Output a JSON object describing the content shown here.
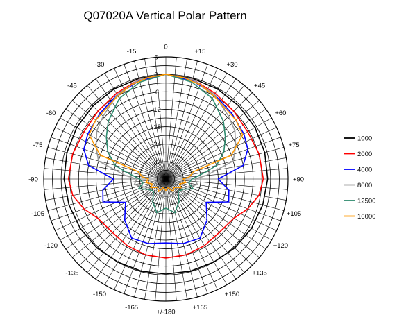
{
  "chart_data": {
    "type": "polar",
    "title": "Q07020A Vertical Polar Pattern",
    "angle_ticks": [
      {
        "deg": 0,
        "label": "0"
      },
      {
        "deg": 15,
        "label": "+15"
      },
      {
        "deg": 30,
        "label": "+30"
      },
      {
        "deg": 45,
        "label": "+45"
      },
      {
        "deg": 60,
        "label": "+60"
      },
      {
        "deg": 75,
        "label": "+75"
      },
      {
        "deg": 90,
        "label": "+90"
      },
      {
        "deg": 105,
        "label": "+105"
      },
      {
        "deg": 120,
        "label": "+120"
      },
      {
        "deg": 135,
        "label": "+135"
      },
      {
        "deg": 150,
        "label": "+150"
      },
      {
        "deg": 165,
        "label": "+165"
      },
      {
        "deg": 180,
        "label": "+/-180"
      },
      {
        "deg": -165,
        "label": "-165"
      },
      {
        "deg": -150,
        "label": "-150"
      },
      {
        "deg": -135,
        "label": "-135"
      },
      {
        "deg": -120,
        "label": "-120"
      },
      {
        "deg": -105,
        "label": "-105"
      },
      {
        "deg": -90,
        "label": "-90"
      },
      {
        "deg": -75,
        "label": "-75"
      },
      {
        "deg": -60,
        "label": "-60"
      },
      {
        "deg": -45,
        "label": "-45"
      },
      {
        "deg": -30,
        "label": "-30"
      },
      {
        "deg": -15,
        "label": "-15"
      }
    ],
    "radial_range_db": [
      -36,
      6
    ],
    "radial_ticks": [
      6,
      0,
      -6,
      -12,
      -18,
      -24,
      -30
    ],
    "grid": true,
    "legend_position": "right",
    "series": [
      {
        "name": "1000",
        "color": "#000000",
        "angles": [
          0,
          15,
          30,
          45,
          60,
          75,
          90,
          105,
          120,
          135,
          150,
          165,
          180
        ],
        "values": [
          0,
          -0.2,
          -0.3,
          -0.5,
          -0.6,
          -0.8,
          -1.0,
          -1.5,
          -2.0,
          -2.5,
          -3.0,
          -3.2,
          -3.3
        ]
      },
      {
        "name": "2000",
        "color": "#ff0000",
        "angles": [
          0,
          15,
          30,
          45,
          60,
          75,
          90,
          100,
          110,
          120,
          135,
          150,
          165,
          180
        ],
        "values": [
          0,
          -0.5,
          -2.0,
          -3.0,
          -3.5,
          -2.8,
          -2.5,
          -3.5,
          -6.0,
          -9.0,
          -10.0,
          -9.5,
          -9.0,
          -8.8
        ]
      },
      {
        "name": "4000",
        "color": "#0000ff",
        "angles": [
          0,
          15,
          30,
          45,
          60,
          70,
          80,
          90,
          100,
          110,
          120,
          135,
          150,
          165,
          180
        ],
        "values": [
          0,
          -1.0,
          -2.5,
          -4.0,
          -5.0,
          -6.0,
          -9.0,
          -18.0,
          -14.0,
          -13.0,
          -20.0,
          -16.0,
          -12.5,
          -13.0,
          -14.0
        ]
      },
      {
        "name": "8000",
        "color": "#9a9a9a",
        "angles": [
          0,
          15,
          30,
          45,
          55,
          65,
          75,
          85,
          90,
          100,
          110,
          120,
          130,
          140,
          150,
          165,
          180
        ],
        "values": [
          0,
          -0.5,
          -2.5,
          -5.5,
          -7.0,
          -9.5,
          -12.0,
          -22.0,
          -26.0,
          -25.0,
          -28.0,
          -30.0,
          -27.0,
          -29.0,
          -30.0,
          -30.0,
          -29.0
        ]
      },
      {
        "name": "12500",
        "color": "#2e8b6e",
        "angles": [
          0,
          15,
          30,
          45,
          55,
          65,
          75,
          80,
          90,
          100,
          110,
          120,
          135,
          150,
          165,
          180
        ],
        "values": [
          0,
          -1.5,
          -4.0,
          -8.0,
          -11.0,
          -14.0,
          -18.0,
          -22.0,
          -27.0,
          -28.0,
          -26.0,
          -29.0,
          -30.0,
          -27.0,
          -24.0,
          -26.0
        ]
      },
      {
        "name": "16000",
        "color": "#ff9900",
        "angles": [
          0,
          10,
          20,
          30,
          40,
          50,
          60,
          70,
          75,
          85,
          90,
          100,
          110,
          120,
          135,
          150,
          165,
          180
        ],
        "values": [
          0,
          -0.6,
          -1.5,
          -3.0,
          -4.2,
          -4.5,
          -5.5,
          -12.0,
          -26.0,
          -28.0,
          -30.0,
          -29.0,
          -31.0,
          -30.0,
          -32.0,
          -31.0,
          -33.0,
          -32.0
        ]
      }
    ]
  }
}
